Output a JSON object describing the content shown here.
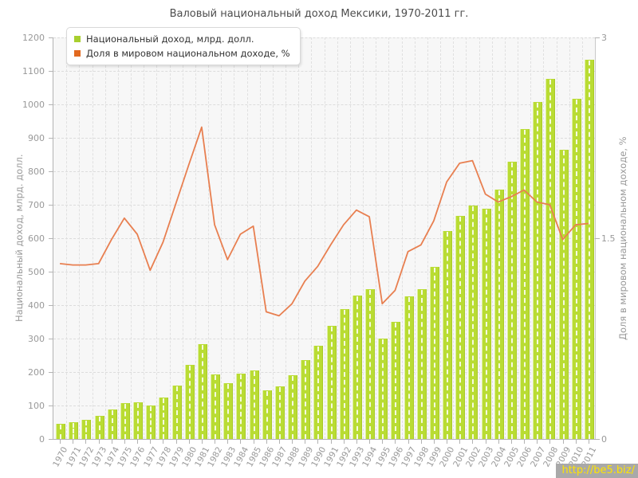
{
  "title": "Валовый национальный доход Мексики, 1970-2011 гг.",
  "legend": [
    {
      "label": "Национальный доход, млрд. долл.",
      "color": "#a8cf2f"
    },
    {
      "label": "Доля в мировом национальном доходе, %",
      "color": "#e2691f"
    }
  ],
  "watermark": {
    "text": "http://be5.biz/",
    "bg_color": "#a9a9a9",
    "text_color": "#ffe400"
  },
  "chart_data": {
    "type": "bar",
    "title": "Валовый национальный доход Мексики, 1970-2011 гг.",
    "grid": true,
    "legend_position": "top-left",
    "categories": [
      "1970",
      "1971",
      "1972",
      "1973",
      "1974",
      "1975",
      "1976",
      "1977",
      "1978",
      "1979",
      "1980",
      "1981",
      "1982",
      "1983",
      "1984",
      "1985",
      "1986",
      "1987",
      "1988",
      "1989",
      "1990",
      "1991",
      "1992",
      "1993",
      "1994",
      "1995",
      "1996",
      "1997",
      "1998",
      "1999",
      "2000",
      "2001",
      "2002",
      "2003",
      "2004",
      "2005",
      "2006",
      "2007",
      "2008",
      "2009",
      "2010",
      "2011"
    ],
    "series": [
      {
        "name": "Национальный доход, млрд. долл.",
        "type": "bar",
        "axis": "left",
        "color": "#b9dc33",
        "values": [
          45,
          50,
          56,
          68,
          88,
          108,
          110,
          100,
          123,
          160,
          222,
          283,
          194,
          167,
          195,
          205,
          145,
          157,
          190,
          235,
          278,
          337,
          388,
          429,
          448,
          300,
          350,
          426,
          447,
          514,
          621,
          667,
          697,
          688,
          745,
          829,
          926,
          1007,
          1076,
          864,
          1017,
          1134
        ]
      },
      {
        "name": "Доля в мировом национальном доходе, %",
        "type": "line",
        "axis": "right",
        "color": "#e87f50",
        "values": [
          1.31,
          1.3,
          1.3,
          1.31,
          1.49,
          1.65,
          1.53,
          1.26,
          1.47,
          1.76,
          2.05,
          2.33,
          1.6,
          1.34,
          1.53,
          1.59,
          0.95,
          0.92,
          1.01,
          1.18,
          1.29,
          1.45,
          1.6,
          1.71,
          1.66,
          1.01,
          1.11,
          1.4,
          1.45,
          1.63,
          1.92,
          2.06,
          2.08,
          1.83,
          1.77,
          1.81,
          1.86,
          1.77,
          1.75,
          1.49,
          1.6,
          1.61
        ]
      }
    ],
    "left_axis": {
      "label": "Национальный доход, млрд. долл.",
      "min": 0,
      "max": 1200,
      "tick_step": 100
    },
    "right_axis": {
      "label": "Доля в мировом национальном доходе, %",
      "min": 0,
      "max": 3,
      "ticks": [
        0,
        1.5,
        3
      ],
      "tick_labels": [
        "0",
        "1.5",
        "3"
      ]
    }
  }
}
